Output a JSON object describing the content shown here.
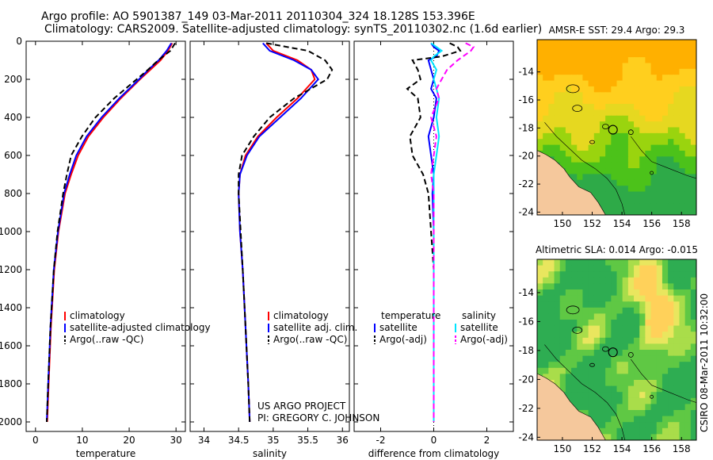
{
  "header": {
    "title_line1": "Argo profile: AO 5901387_149 03-Mar-2011 20110304_324 18.128S 153.396E",
    "title_line2": "Climatology: CARS2009. Satellite-adjusted climatology: synTS_20110302.nc (1.6d earlier)"
  },
  "credits": {
    "line1": "US ARGO PROJECT",
    "line2": "PI: GREGORY C. JOHNSON",
    "timestamp": "CSIRO 08-Mar-2011 10:32:00"
  },
  "colors": {
    "climatology": "#ff0000",
    "satellite": "#0000ff",
    "argo": "#000000",
    "sat_salinity": "#00e5ff",
    "argo_salinity": "#ff00ff",
    "land": "#f5c89c"
  },
  "chart_data": [
    {
      "type": "line",
      "name": "temperature",
      "xlabel": "temperature",
      "ylabel": "",
      "xlim": [
        -2,
        32
      ],
      "ylim": [
        2050,
        0
      ],
      "xticks": [
        0,
        10,
        20,
        30
      ],
      "yticks": [
        0,
        200,
        400,
        600,
        800,
        1000,
        1200,
        1400,
        1600,
        1800,
        2000
      ],
      "legend": [
        "climatology",
        "satellite-adjusted climatology",
        "Argo(..raw -QC)"
      ],
      "depth": [
        10,
        50,
        100,
        150,
        200,
        300,
        400,
        500,
        600,
        700,
        800,
        1000,
        1200,
        1500,
        1800,
        2000
      ],
      "series": [
        {
          "name": "climatology",
          "values": [
            29.2,
            28.3,
            26.7,
            24.5,
            22.3,
            18.2,
            14.5,
            11.3,
            9.1,
            7.6,
            6.3,
            4.9,
            4.0,
            3.3,
            2.8,
            2.5
          ]
        },
        {
          "name": "satellite-adjusted climatology",
          "values": [
            29.0,
            28.0,
            26.3,
            24.1,
            22.1,
            17.9,
            14.1,
            10.9,
            8.7,
            7.3,
            6.1,
            4.8,
            3.9,
            3.2,
            2.7,
            2.4
          ]
        },
        {
          "name": "Argo(..raw -QC)",
          "values": [
            29.8,
            28.8,
            26.2,
            24.0,
            21.6,
            16.8,
            12.8,
            9.9,
            7.6,
            6.7,
            5.9,
            4.7,
            3.9,
            3.2,
            2.7,
            2.4
          ]
        }
      ]
    },
    {
      "type": "line",
      "name": "salinity",
      "xlabel": "salinity",
      "xlim": [
        33.8,
        36.1
      ],
      "ylim": [
        2050,
        0
      ],
      "xticks": [
        34,
        34.5,
        35,
        35.5,
        36
      ],
      "legend": [
        "climatology",
        "satellite adj. clim.",
        "Argo(..raw -QC)"
      ],
      "depth": [
        10,
        50,
        100,
        150,
        200,
        300,
        400,
        500,
        600,
        700,
        800,
        1000,
        1200,
        1500,
        1800,
        2000
      ],
      "series": [
        {
          "name": "climatology",
          "values": [
            34.9,
            35.0,
            35.35,
            35.55,
            35.6,
            35.35,
            35.05,
            34.78,
            34.6,
            34.52,
            34.5,
            34.52,
            34.56,
            34.6,
            34.64,
            34.66
          ]
        },
        {
          "name": "satellite adj. clim.",
          "values": [
            34.85,
            34.95,
            35.3,
            35.55,
            35.65,
            35.4,
            35.1,
            34.8,
            34.62,
            34.52,
            34.5,
            34.52,
            34.56,
            34.6,
            34.64,
            34.66
          ]
        },
        {
          "name": "Argo(..raw -QC)",
          "values": [
            34.9,
            35.5,
            35.75,
            35.85,
            35.78,
            35.3,
            34.95,
            34.72,
            34.55,
            34.5,
            34.5,
            34.53,
            34.56,
            34.6,
            34.64,
            34.66
          ]
        }
      ]
    },
    {
      "type": "line",
      "name": "difference",
      "xlabel": "difference from climatology",
      "xlim": [
        -3,
        3
      ],
      "ylim": [
        2050,
        0
      ],
      "xticks": [
        -2,
        0,
        2
      ],
      "legend_headings": [
        "temperature",
        "salinity"
      ],
      "legend_temperature": [
        "satellite",
        "Argo(-adj)"
      ],
      "legend_salinity": [
        "satellite",
        "Argo(-adj)"
      ],
      "depth": [
        10,
        30,
        50,
        80,
        100,
        150,
        200,
        250,
        300,
        400,
        500,
        600,
        700,
        800,
        1000,
        1200,
        1500,
        2000
      ],
      "series": [
        {
          "name": "temperature satellite",
          "values": [
            -0.1,
            0.0,
            0.2,
            0.1,
            -0.2,
            -0.1,
            0.0,
            -0.1,
            0.1,
            0.0,
            -0.2,
            -0.1,
            0.0,
            -0.05,
            0.0,
            0.0,
            0.0,
            0.0
          ]
        },
        {
          "name": "temperature Argo(-adj)",
          "values": [
            0.6,
            0.9,
            1.0,
            0.3,
            -0.8,
            -0.6,
            -0.5,
            -1.0,
            -0.6,
            -0.5,
            -0.9,
            -0.8,
            -0.4,
            -0.2,
            -0.1,
            0.0,
            0.0,
            0.0
          ]
        },
        {
          "name": "salinity satellite",
          "values": [
            -0.1,
            0.1,
            0.3,
            0.0,
            -0.1,
            0.1,
            0.0,
            0.1,
            0.2,
            0.1,
            0.2,
            0.1,
            0.0,
            0.0,
            0.0,
            0.0,
            0.0,
            0.0
          ]
        },
        {
          "name": "salinity Argo(-adj)",
          "values": [
            1.2,
            1.5,
            1.4,
            1.1,
            0.9,
            0.5,
            0.3,
            0.1,
            0.2,
            -0.1,
            0.1,
            0.0,
            -0.1,
            0.0,
            0.0,
            0.0,
            0.0,
            0.0
          ]
        }
      ]
    },
    {
      "type": "heatmap",
      "name": "sst-map",
      "title": "AMSR-E SST: 29.4  Argo: 29.3",
      "xticks": [
        150,
        152,
        154,
        156,
        158
      ],
      "yticks": [
        -14,
        -16,
        -18,
        -20,
        -22,
        -24
      ],
      "xlim": [
        148.3,
        159
      ],
      "ylim": [
        -24.2,
        -11.7
      ],
      "argo_position": [
        153.396,
        -18.128
      ]
    },
    {
      "type": "heatmap",
      "name": "sla-map",
      "title": "Altimetric SLA: 0.014  Argo: -0.015",
      "xticks": [
        150,
        152,
        154,
        156,
        158
      ],
      "yticks": [
        -14,
        -16,
        -18,
        -20,
        -22,
        -24
      ],
      "xlim": [
        148.3,
        159
      ],
      "ylim": [
        -24.2,
        -11.7
      ],
      "argo_position": [
        153.396,
        -18.128
      ]
    }
  ]
}
